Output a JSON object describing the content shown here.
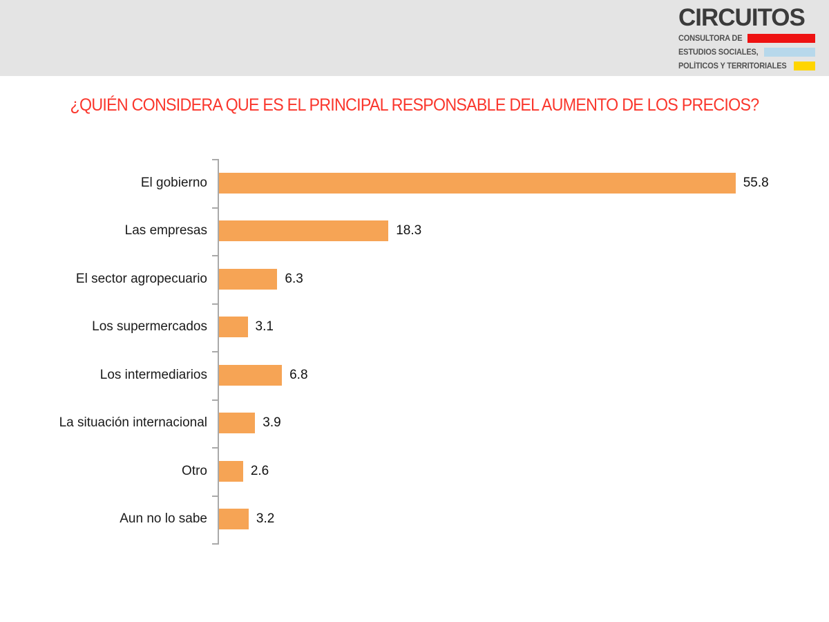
{
  "logo": {
    "name": "CIRCUITOS",
    "tagline1": "CONSULTORA DE",
    "tagline2": "ESTUDIOS SOCIALES,",
    "tagline3": "POLÍTICOS Y TERRITORIALES",
    "accent_red": "#ee1212",
    "accent_blue": "#b7d8eb",
    "accent_yellow": "#ffd500",
    "text_color": "#3b3b3b"
  },
  "title": {
    "text": "¿QUIÉN CONSIDERA QUE ES EL PRINCIPAL RESPONSABLE DEL AUMENTO DE LOS PRECIOS?",
    "color": "#fa362c"
  },
  "chart_data": {
    "type": "bar",
    "orientation": "horizontal",
    "categories": [
      "El gobierno",
      "Las empresas",
      "El sector agropecuario",
      "Los supermercados",
      "Los intermediarios",
      "La situación internacional",
      "Otro",
      "Aun no lo sabe"
    ],
    "values": [
      55.8,
      18.3,
      6.3,
      3.1,
      6.8,
      3.9,
      2.6,
      3.2
    ],
    "value_labels": [
      "55.8",
      "18.3",
      "6.3",
      "3.1",
      "6.8",
      "3.9",
      "2.6",
      "3.2"
    ],
    "bar_color": "#f6a455",
    "axis_color": "#a9a9a9",
    "xlim": [
      0,
      60
    ],
    "grid": false,
    "legend": false,
    "value_labels_shown": true
  }
}
